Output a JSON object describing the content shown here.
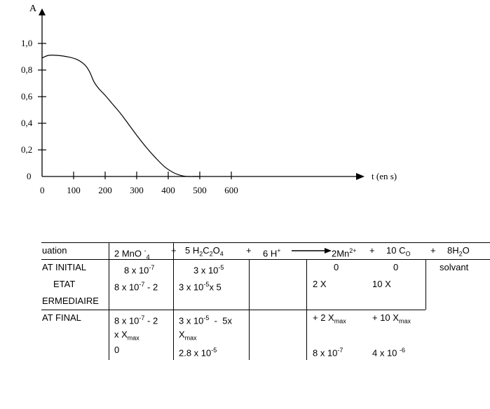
{
  "chart_data": {
    "type": "line",
    "ylabel": "A",
    "xlabel": "t (en s)",
    "x_ticks": [
      0,
      100,
      200,
      300,
      400,
      500,
      600
    ],
    "x_tick_labels": [
      "0",
      "100",
      "200",
      "300",
      "400",
      "500",
      "600"
    ],
    "y_ticks": [
      0,
      0.2,
      0.4,
      0.6,
      0.8,
      1.0
    ],
    "y_tick_labels": [
      "0",
      "0,2",
      "0,4",
      "0,6",
      "0,8",
      "1,0"
    ],
    "xlim": [
      0,
      1000
    ],
    "ylim": [
      0,
      1.05
    ],
    "series": [
      {
        "x": [
          0,
          20,
          50,
          80,
          110,
          135,
          150,
          165,
          180,
          200,
          225,
          250,
          275,
          300,
          330,
          360,
          390,
          420,
          445,
          465,
          480,
          500
        ],
        "values": [
          0.89,
          0.91,
          0.91,
          0.9,
          0.88,
          0.84,
          0.79,
          0.71,
          0.66,
          0.61,
          0.54,
          0.47,
          0.39,
          0.31,
          0.22,
          0.14,
          0.07,
          0.025,
          0.005,
          0.0,
          0.0,
          0.0
        ]
      }
    ]
  },
  "table": {
    "head": {
      "eq": "uation",
      "mno4_a": "2 MnO ",
      "mno4_sup": "-",
      "mno4_sub": "4",
      "plus1": "+",
      "h2c2o4_a": "5 H",
      "h2c2o4_s1": "2",
      "h2c2o4_b": "C",
      "h2c2o4_s2": "2",
      "h2c2o4_c": "O",
      "h2c2o4_s3": "4",
      "plus2": "+",
      "hplus_a": "6 H",
      "hplus_sup": "+",
      "mn_a": "2Mn",
      "mn_sup": "2+",
      "plus3": "+",
      "co_a": "10 C",
      "co_sub": "O",
      "plus4": "+",
      "h2o_a": "8H",
      "h2o_sub": "2",
      "h2o_b": "O"
    },
    "initial": {
      "label": "AT INITIAL",
      "c1_a": "8 x 10",
      "c1_sup": "-7",
      "c2_a": "3 x 10",
      "c2_sup": "-5",
      "c4": "0",
      "c5": "0",
      "c6": "solvant"
    },
    "inter": {
      "label1": "ETAT",
      "label2": "ERMEDIAIRE",
      "c1_a": "8 x 10",
      "c1_sup": "-7",
      "c1_b": " - 2",
      "c2_a": "3 x 10",
      "c2_sup": "-5",
      "c2_b": "x 5",
      "c4": "2 X",
      "c5": "10 X"
    },
    "final": {
      "label": "AT FINAL",
      "c1_a": "8 x 10",
      "c1_sup": "-7",
      "c1_b": " - 2",
      "c1_line2_a": "x X",
      "c1_line2_sub": "max",
      "c2_a": "3 x 10",
      "c2_sup": "-5",
      "c2_b": "  -  5x",
      "c2_line2_a": "X",
      "c2_line2_sub": "max",
      "c4_a": "+ 2 X",
      "c4_sub": "max",
      "c5_a": "+ 10 X",
      "c5_sub": "max",
      "r2_c1": "0",
      "r2_c2_a": "2.8 x 10",
      "r2_c2_sup": "-5",
      "r2_c4_a": "8 x 10",
      "r2_c4_sup": "-7",
      "r2_c5_a": "4 x 10 ",
      "r2_c5_sup": "-6"
    }
  }
}
